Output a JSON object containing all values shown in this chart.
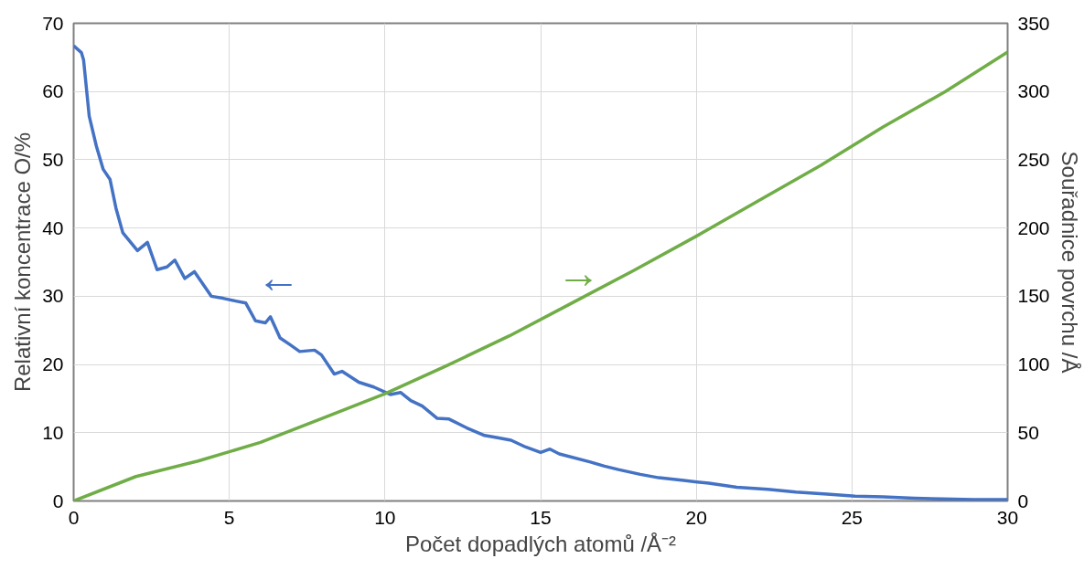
{
  "chart_data": {
    "type": "line",
    "xlabel": "Počet dopadlých atomů /Å⁻²",
    "ylabel": "Relativní koncentrace O/%",
    "y2label": "Souřadnice povrchu /Å",
    "xlim": [
      0,
      30
    ],
    "xticks": [
      0,
      5,
      10,
      15,
      20,
      25,
      30
    ],
    "ylim": [
      0,
      70
    ],
    "yticks": [
      0,
      10,
      20,
      30,
      40,
      50,
      60,
      70
    ],
    "y2lim": [
      0,
      350
    ],
    "y2ticks": [
      0,
      50,
      100,
      150,
      200,
      250,
      300,
      350
    ],
    "grid": true,
    "marker": "none",
    "line_style": "solid",
    "annotations": [
      "←",
      "→"
    ],
    "series": [
      {
        "color": "#4472c4",
        "x": [
          0,
          0.25,
          0.32,
          0.5,
          0.73,
          0.95,
          1.17,
          1.36,
          1.58,
          2.05,
          2.37,
          2.68,
          3.0,
          3.25,
          3.57,
          3.88,
          4.42,
          4.8,
          5.21,
          5.53,
          5.84,
          6.16,
          6.32,
          6.63,
          6.95,
          7.26,
          7.74,
          7.96,
          8.37,
          8.62,
          9.16,
          9.64,
          10.17,
          10.5,
          10.83,
          11.2,
          11.68,
          12.06,
          12.63,
          13.2,
          13.58,
          14.05,
          14.52,
          15.0,
          15.3,
          15.6,
          16.6,
          17.05,
          17.5,
          18.2,
          18.8,
          19.6,
          20.4,
          21.3,
          22.3,
          23.2,
          24.2,
          25.1,
          26.0,
          27.0,
          27.9,
          28.9,
          30
        ],
        "values": [
          66.7,
          65.7,
          64.6,
          56.4,
          52,
          48.6,
          47.1,
          42.9,
          39.3,
          36.7,
          37.9,
          33.9,
          34.3,
          35.3,
          32.6,
          33.6,
          30,
          29.7,
          29.3,
          29,
          26.4,
          26.1,
          27,
          23.9,
          22.9,
          21.9,
          22.1,
          21.4,
          18.6,
          19,
          17.4,
          16.7,
          15.6,
          15.9,
          14.7,
          13.9,
          12.1,
          12,
          10.7,
          9.6,
          9.3,
          8.9,
          7.9,
          7.1,
          7.6,
          6.9,
          5.7,
          5.1,
          4.6,
          3.9,
          3.4,
          3.0,
          2.6,
          2.0,
          1.7,
          1.3,
          1.0,
          0.7,
          0.6,
          0.4,
          0.3,
          0.2,
          0.2
        ]
      },
      {
        "color": "#70ad47",
        "axis": "y2",
        "x": [
          0,
          2,
          4,
          6,
          8,
          10,
          12,
          14,
          16,
          18,
          20,
          22,
          24,
          26,
          28,
          30
        ],
        "values": [
          0,
          17.9,
          29.3,
          42.9,
          60.7,
          78.6,
          99.3,
          121,
          145,
          169,
          194,
          220,
          246,
          274,
          300,
          329
        ]
      }
    ]
  }
}
